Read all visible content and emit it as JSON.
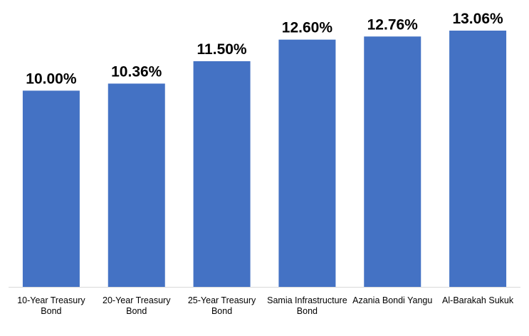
{
  "chart_data": {
    "type": "bar",
    "categories": [
      "10-Year Treasury Bond",
      "20-Year Treasury Bond",
      "25-Year Treasury Bond",
      "Samia Infrastructure Bond",
      "Azania Bondi Yangu",
      "Al-Barakah Sukuk"
    ],
    "values": [
      10.0,
      10.36,
      11.5,
      12.6,
      12.76,
      13.06
    ],
    "value_labels": [
      "10.00%",
      "10.36%",
      "11.50%",
      "12.60%",
      "12.76%",
      "13.06%"
    ],
    "color": "#4472c4"
  }
}
